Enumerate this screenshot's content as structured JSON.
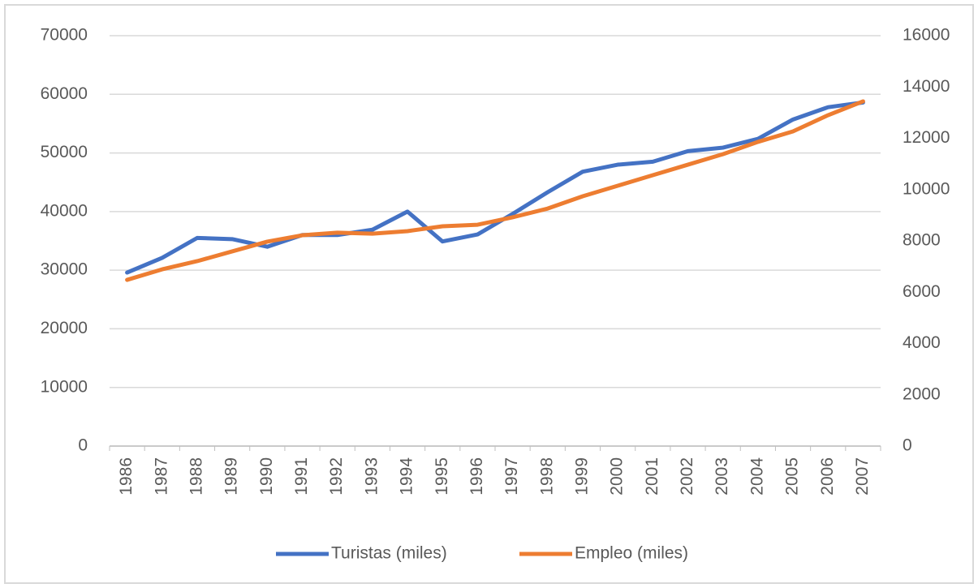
{
  "chart_data": {
    "type": "line",
    "categories": [
      "1986",
      "1987",
      "1988",
      "1989",
      "1990",
      "1991",
      "1992",
      "1993",
      "1994",
      "1995",
      "1996",
      "1997",
      "1998",
      "1999",
      "2000",
      "2001",
      "2002",
      "2003",
      "2004",
      "2005",
      "2006",
      "2007"
    ],
    "series": [
      {
        "name": "Turistas (miles)",
        "color": "#4472c4",
        "axis": "y",
        "values": [
          29600,
          32100,
          35500,
          35300,
          34000,
          36000,
          36000,
          36900,
          40000,
          34900,
          36100,
          39600,
          43300,
          46800,
          48000,
          48500,
          50300,
          50900,
          52400,
          55700,
          57800,
          58600
        ]
      },
      {
        "name": "Empleo (miles)",
        "color": "#ed7d31",
        "axis": "y2",
        "values": [
          6480,
          6890,
          7210,
          7590,
          7970,
          8220,
          8320,
          8280,
          8380,
          8570,
          8630,
          8920,
          9260,
          9740,
          10150,
          10560,
          10970,
          11380,
          11860,
          12270,
          12900,
          13440
        ]
      }
    ],
    "ylim": [
      0,
      70000
    ],
    "yticks": [
      0,
      10000,
      20000,
      30000,
      40000,
      50000,
      60000,
      70000
    ],
    "y2lim": [
      0,
      16000
    ],
    "y2ticks": [
      0,
      2000,
      4000,
      6000,
      8000,
      10000,
      12000,
      14000,
      16000
    ],
    "grid": true,
    "legend": "bottom"
  }
}
